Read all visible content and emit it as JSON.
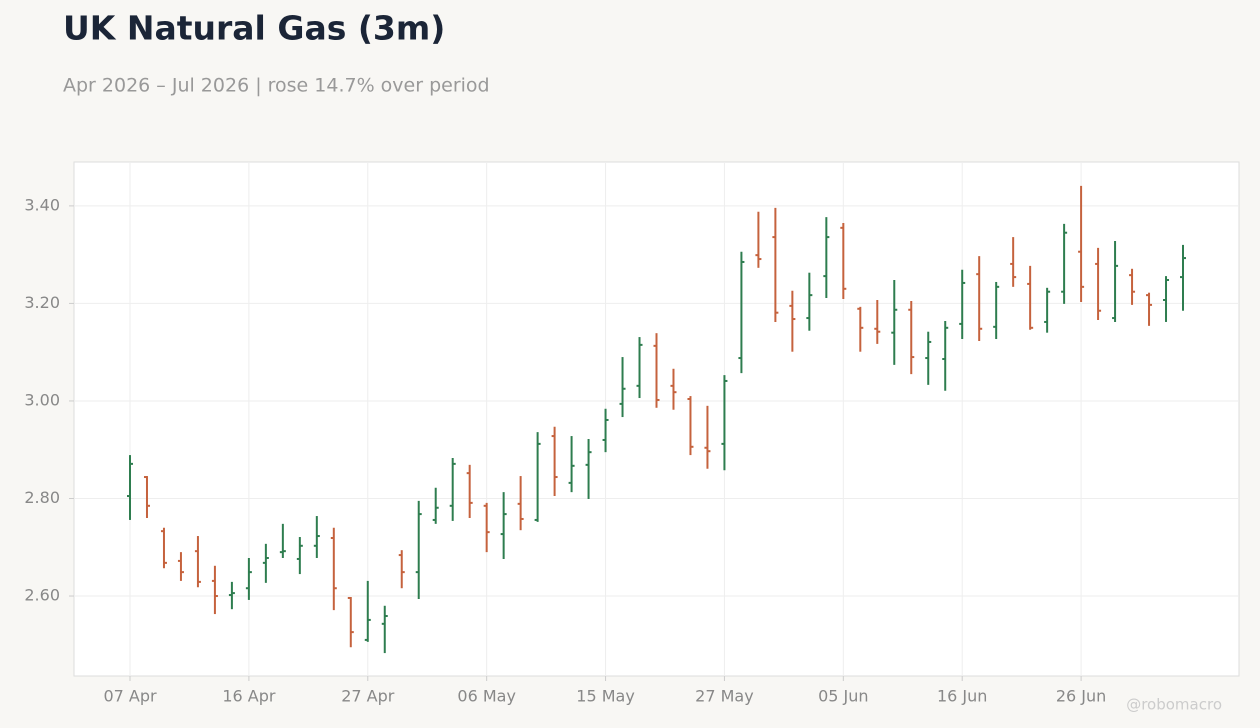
{
  "chart_data": {
    "type": "ohlc",
    "title": "UK Natural Gas (3m)",
    "subtitle": "Apr 2026 – Jul 2026 | rose 14.7% over period",
    "watermark": "@robomacro",
    "categories": [
      "07 Apr",
      null,
      null,
      null,
      null,
      null,
      null,
      "16 Apr",
      null,
      null,
      null,
      null,
      null,
      null,
      "27 Apr",
      null,
      null,
      null,
      null,
      null,
      null,
      "06 May",
      null,
      null,
      null,
      null,
      null,
      null,
      "15 May",
      null,
      null,
      null,
      null,
      null,
      null,
      "27 May",
      null,
      null,
      null,
      null,
      null,
      null,
      "05 Jun",
      null,
      null,
      null,
      null,
      null,
      null,
      "16 Jun",
      null,
      null,
      null,
      null,
      null,
      null,
      "26 Jun",
      null,
      null,
      null,
      null,
      null,
      null
    ],
    "open": [
      2.805,
      2.844,
      2.733,
      2.672,
      2.692,
      2.631,
      2.602,
      2.616,
      2.668,
      2.69,
      2.676,
      2.703,
      2.719,
      2.596,
      2.51,
      2.543,
      2.684,
      2.649,
      2.756,
      2.785,
      2.852,
      2.785,
      2.727,
      2.789,
      2.756,
      2.928,
      2.832,
      2.869,
      2.92,
      2.994,
      3.031,
      3.113,
      3.031,
      3.004,
      2.904,
      2.912,
      3.088,
      3.299,
      3.336,
      3.195,
      3.17,
      3.256,
      3.355,
      3.189,
      3.148,
      3.14,
      3.187,
      3.088,
      3.086,
      3.158,
      3.26,
      3.152,
      3.281,
      3.24,
      3.162,
      3.224,
      3.306,
      3.281,
      3.17,
      3.258,
      3.217,
      3.207,
      3.254
    ],
    "high": [
      2.889,
      2.846,
      2.74,
      2.69,
      2.723,
      2.662,
      2.629,
      2.678,
      2.707,
      2.748,
      2.721,
      2.764,
      2.74,
      2.598,
      2.631,
      2.58,
      2.694,
      2.795,
      2.822,
      2.883,
      2.869,
      2.791,
      2.813,
      2.846,
      2.936,
      2.947,
      2.928,
      2.922,
      2.984,
      3.09,
      3.131,
      3.139,
      3.066,
      3.01,
      2.99,
      3.053,
      3.306,
      3.388,
      3.396,
      3.226,
      3.263,
      3.377,
      3.365,
      3.193,
      3.207,
      3.248,
      3.205,
      3.142,
      3.164,
      3.269,
      3.297,
      3.244,
      3.336,
      3.277,
      3.232,
      3.363,
      3.441,
      3.314,
      3.328,
      3.271,
      3.222,
      3.256,
      3.32
    ],
    "low": [
      2.756,
      2.76,
      2.657,
      2.631,
      2.618,
      2.563,
      2.573,
      2.592,
      2.627,
      2.678,
      2.645,
      2.678,
      2.571,
      2.495,
      2.506,
      2.483,
      2.616,
      2.594,
      2.748,
      2.754,
      2.76,
      2.69,
      2.676,
      2.735,
      2.752,
      2.805,
      2.813,
      2.799,
      2.895,
      2.967,
      3.006,
      2.986,
      2.982,
      2.889,
      2.861,
      2.858,
      3.057,
      3.273,
      3.162,
      3.101,
      3.144,
      3.211,
      3.209,
      3.101,
      3.117,
      3.074,
      3.055,
      3.033,
      3.021,
      3.127,
      3.123,
      3.127,
      3.234,
      3.146,
      3.14,
      3.199,
      3.203,
      3.166,
      3.162,
      3.197,
      3.154,
      3.162,
      3.185
    ],
    "close": [
      2.871,
      2.785,
      2.668,
      2.649,
      2.629,
      2.6,
      2.606,
      2.649,
      2.678,
      2.692,
      2.703,
      2.723,
      2.616,
      2.526,
      2.551,
      2.559,
      2.649,
      2.768,
      2.781,
      2.871,
      2.791,
      2.731,
      2.768,
      2.758,
      2.912,
      2.844,
      2.867,
      2.895,
      2.961,
      3.025,
      3.115,
      3.002,
      3.018,
      2.906,
      2.897,
      3.041,
      3.285,
      3.291,
      3.181,
      3.168,
      3.217,
      3.336,
      3.23,
      3.15,
      3.142,
      3.187,
      3.09,
      3.121,
      3.15,
      3.242,
      3.148,
      3.234,
      3.254,
      3.15,
      3.224,
      3.345,
      3.234,
      3.185,
      3.277,
      3.224,
      3.197,
      3.248,
      3.293
    ],
    "up_color": "#2e7d4f",
    "down_color": "#c5623d",
    "ylim": [
      2.436,
      3.49
    ],
    "yticks": [
      {
        "value": 2.6,
        "label": "2.60"
      },
      {
        "value": 2.8,
        "label": "2.80"
      },
      {
        "value": 3.0,
        "label": "3.00"
      },
      {
        "value": 3.2,
        "label": "3.20"
      },
      {
        "value": 3.4,
        "label": "3.40"
      }
    ],
    "grid": true
  }
}
